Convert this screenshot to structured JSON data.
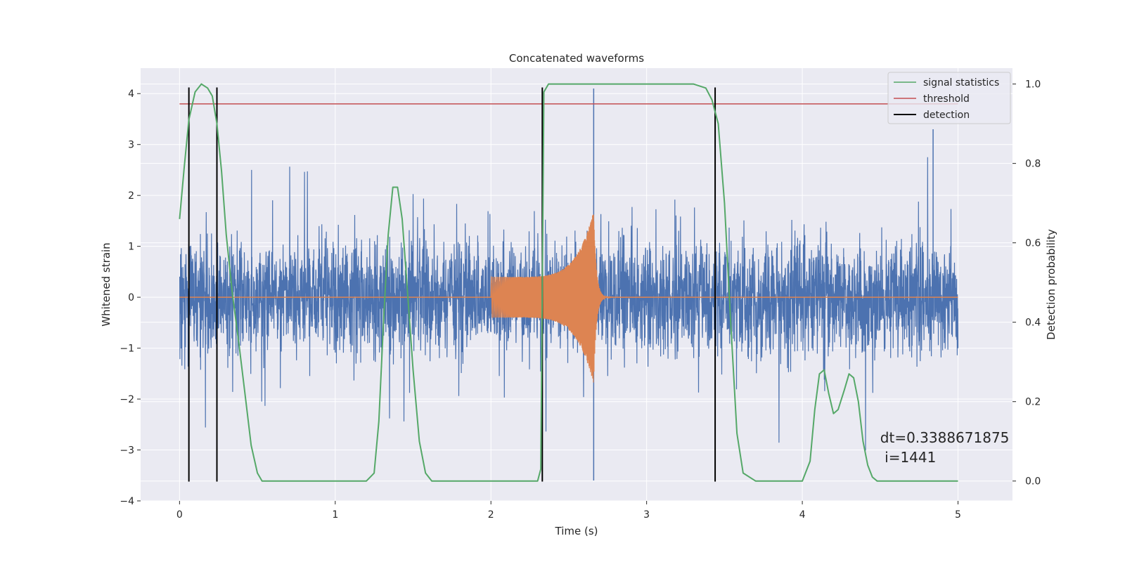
{
  "chart_data": {
    "type": "line",
    "title": "Concatenated waveforms",
    "xlabel": "Time (s)",
    "ylabel": "Whitened strain",
    "ylabel_right": "Detection probability",
    "xlim": [
      -0.25,
      5.35
    ],
    "ylim": [
      -4.0,
      4.5
    ],
    "ylim_right": [
      -0.05,
      1.04
    ],
    "x_ticks": [
      0,
      1,
      2,
      3,
      4,
      5
    ],
    "y_ticks": [
      -4,
      -3,
      -2,
      -1,
      0,
      1,
      2,
      3,
      4
    ],
    "y_ticks_right": [
      0.0,
      0.2,
      0.4,
      0.6,
      0.8,
      1.0
    ],
    "x_tick_labels": [
      "0",
      "1",
      "2",
      "3",
      "4",
      "5"
    ],
    "y_tick_labels": [
      "−4",
      "−3",
      "−2",
      "−1",
      "0",
      "1",
      "2",
      "3",
      "4"
    ],
    "y_tick_labels_right": [
      "0.0",
      "0.2",
      "0.4",
      "0.6",
      "0.8",
      "1.0"
    ],
    "grid": true,
    "legend_position": "top-right",
    "legend": [
      "signal statistics",
      "threshold",
      "detection"
    ],
    "colors": {
      "noise": "#4c72b0",
      "injection": "#dd8452",
      "signal_statistics": "#55a868",
      "threshold": "#c44e52",
      "detection": "#000000",
      "background": "#eaeaf2",
      "grid": "#ffffff"
    },
    "series": [
      {
        "name": "signal statistics",
        "axis": "right",
        "x": [
          0.0,
          0.03,
          0.06,
          0.1,
          0.14,
          0.18,
          0.21,
          0.24,
          0.27,
          0.3,
          0.34,
          0.38,
          0.42,
          0.46,
          0.5,
          0.53,
          0.6,
          0.8,
          1.0,
          1.2,
          1.25,
          1.28,
          1.31,
          1.34,
          1.37,
          1.4,
          1.43,
          1.46,
          1.5,
          1.54,
          1.58,
          1.62,
          1.8,
          2.0,
          2.2,
          2.3,
          2.32,
          2.33,
          2.34,
          2.37,
          2.5,
          3.0,
          3.3,
          3.38,
          3.42,
          3.46,
          3.5,
          3.54,
          3.58,
          3.62,
          3.7,
          3.9,
          4.0,
          4.05,
          4.08,
          4.11,
          4.14,
          4.17,
          4.2,
          4.23,
          4.27,
          4.3,
          4.33,
          4.36,
          4.39,
          4.42,
          4.45,
          4.48,
          4.55,
          4.7,
          4.9,
          5.0
        ],
        "values": [
          0.66,
          0.79,
          0.91,
          0.98,
          1.0,
          0.99,
          0.97,
          0.9,
          0.78,
          0.62,
          0.47,
          0.35,
          0.22,
          0.09,
          0.02,
          0.0,
          0.0,
          0.0,
          0.0,
          0.0,
          0.02,
          0.15,
          0.4,
          0.62,
          0.74,
          0.74,
          0.66,
          0.5,
          0.28,
          0.1,
          0.02,
          0.0,
          0.0,
          0.0,
          0.0,
          0.0,
          0.03,
          0.5,
          0.98,
          1.0,
          1.0,
          1.0,
          1.0,
          0.99,
          0.96,
          0.9,
          0.7,
          0.4,
          0.12,
          0.02,
          0.0,
          0.0,
          0.0,
          0.05,
          0.18,
          0.27,
          0.28,
          0.22,
          0.17,
          0.18,
          0.23,
          0.27,
          0.26,
          0.2,
          0.1,
          0.04,
          0.01,
          0.0,
          0.0,
          0.0,
          0.0,
          0.0
        ]
      },
      {
        "name": "threshold",
        "axis": "right",
        "x": [
          0.0,
          5.0
        ],
        "values": [
          0.95,
          0.95
        ]
      },
      {
        "name": "detection",
        "axis": "left",
        "x_positions": [
          0.06,
          0.24,
          2.33,
          3.44
        ],
        "ymin": -3.62,
        "ymax": 4.12
      }
    ],
    "noise_series": {
      "x_range": [
        0.0,
        5.0
      ],
      "core_amplitude": 1.0,
      "spike_min": -3.6,
      "spike_max": 4.1
    },
    "injection_series": {
      "start": 2.0,
      "merger": 2.66,
      "end": 3.0,
      "amplitude_start": 0.4,
      "amplitude_peak": 1.7
    },
    "annotations": {
      "dt_text": "dt=0.3388671875",
      "i_text": " i=1441",
      "x": 4.5
    }
  }
}
